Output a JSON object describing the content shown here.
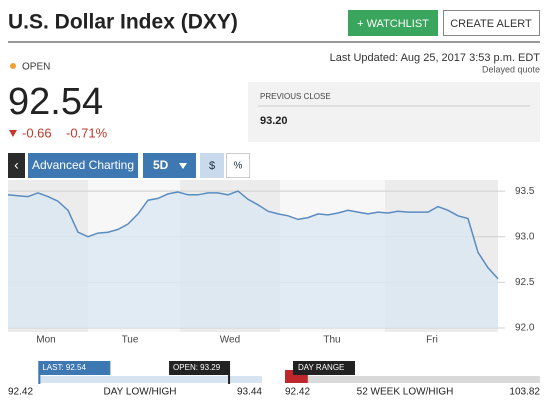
{
  "header": {
    "title": "U.S. Dollar Index (DXY)",
    "watchlist": "+ WATCHLIST",
    "alert": "CREATE ALERT"
  },
  "quote": {
    "updated": "Last Updated: Aug 25, 2017 3:53 p.m. EDT",
    "delayed": "Delayed quote",
    "status": "OPEN",
    "price": 92.54,
    "change": "-0.66",
    "change_percent": "-0.71%",
    "previous_close_label": "PREVIOUS CLOSE",
    "previous_close": "93.20"
  },
  "toolbar": {
    "back": "‹",
    "advanced": "Advanced Charting",
    "range": "5D",
    "currency": "$",
    "percent": "%"
  },
  "chart": {
    "type": "line",
    "color": "#5b8cc0",
    "fill": "#dbe7f3",
    "x_labels": [
      "Mon",
      "Tue",
      "Wed",
      "Thu",
      "Fri"
    ],
    "values": [
      93.46,
      93.45,
      93.44,
      93.48,
      93.44,
      93.39,
      93.29,
      93.05,
      93.0,
      93.04,
      93.05,
      93.08,
      93.14,
      93.25,
      93.4,
      93.42,
      93.47,
      93.49,
      93.46,
      93.46,
      93.48,
      93.48,
      93.46,
      93.5,
      93.41,
      93.35,
      93.28,
      93.25,
      93.23,
      93.19,
      93.21,
      93.25,
      93.24,
      93.26,
      93.29,
      93.27,
      93.25,
      93.27,
      93.26,
      93.28,
      93.27,
      93.27,
      93.27,
      93.33,
      93.29,
      93.23,
      93.2,
      92.83,
      92.66,
      92.54
    ],
    "ylim": [
      92.0,
      93.6
    ],
    "yticks": [
      93.5,
      {
        "value": 93,
        "label": "93.0"
      },
      92.5,
      {
        "value": 92,
        "label": "92.0"
      }
    ],
    "grid": true
  },
  "ranges": {
    "day": {
      "low": 92.42,
      "high": 93.44,
      "label": "DAY LOW/HIGH",
      "last": 92.54,
      "last_label": "LAST: 92.54",
      "open": 93.29,
      "open_label": "OPEN: 93.29"
    },
    "week52": {
      "low": 92.42,
      "high": 103.82,
      "label": "52 WEEK LOW/HIGH",
      "day_range_label": "DAY RANGE"
    }
  }
}
